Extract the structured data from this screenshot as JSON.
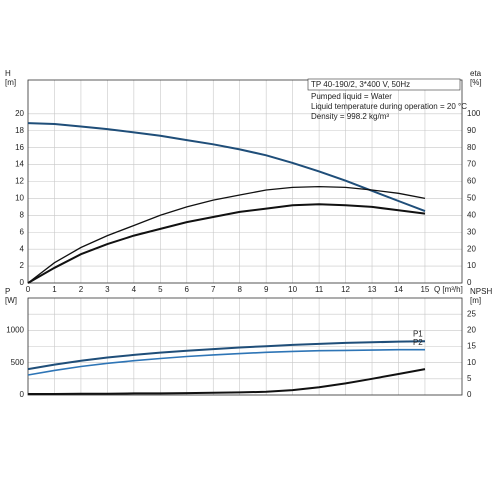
{
  "chart_data": [
    {
      "type": "line",
      "title": "TP 40-190/2, 3*400 V, 50Hz",
      "annotations": [
        "Pumped liquid = Water",
        "Liquid temperature during operation = 20 °C",
        "Density = 998.2 kg/m³"
      ],
      "ylabel": [
        "H",
        "[m]"
      ],
      "y2label": [
        "eta",
        "[%]"
      ],
      "xlabel": "Q [m³/h]",
      "x": [
        0,
        1,
        2,
        3,
        4,
        5,
        6,
        7,
        8,
        9,
        10,
        11,
        12,
        13,
        14,
        15
      ],
      "xlim": [
        0,
        16.4
      ],
      "xticks": [
        0,
        1,
        2,
        3,
        4,
        5,
        6,
        7,
        8,
        9,
        10,
        11,
        12,
        13,
        14,
        15
      ],
      "ylim": [
        0,
        24
      ],
      "yticks": [
        0,
        2,
        4,
        6,
        8,
        10,
        12,
        14,
        16,
        18,
        20
      ],
      "y2lim": [
        0,
        120
      ],
      "y2ticks": [
        0,
        10,
        20,
        30,
        40,
        50,
        60,
        70,
        80,
        90,
        100
      ],
      "grid": true,
      "series": [
        {
          "color": "#1f4e79",
          "width": 2,
          "values": [
            18.9,
            18.8,
            18.5,
            18.2,
            17.8,
            17.4,
            16.9,
            16.4,
            15.8,
            15.1,
            14.2,
            13.2,
            12.1,
            10.9,
            9.7,
            8.5
          ]
        },
        {
          "color": "#111111",
          "width": 1.3,
          "axis": "y2",
          "values": [
            0,
            12,
            21,
            28,
            34,
            40,
            45,
            49,
            52,
            55,
            56.5,
            57,
            56.5,
            55,
            53,
            50
          ]
        },
        {
          "color": "#111111",
          "width": 2,
          "axis": "y2",
          "values": [
            0,
            9,
            17,
            23,
            28,
            32,
            36,
            39,
            42,
            44,
            46,
            46.5,
            46,
            45,
            43,
            41
          ]
        }
      ]
    },
    {
      "type": "line",
      "ylabel": [
        "P",
        "[W]"
      ],
      "y2label": [
        "NPSH",
        "[m]"
      ],
      "x": [
        0,
        1,
        2,
        3,
        4,
        5,
        6,
        7,
        8,
        9,
        10,
        11,
        12,
        13,
        14,
        15
      ],
      "xlim": [
        0,
        16.4
      ],
      "xticks": [
        0,
        1,
        2,
        3,
        4,
        5,
        6,
        7,
        8,
        9,
        10,
        11,
        12,
        13,
        14,
        15
      ],
      "ylim": [
        0,
        1500
      ],
      "yticks": [
        0,
        500,
        1000
      ],
      "y2lim": [
        0,
        30
      ],
      "y2ticks": [
        0,
        5,
        10,
        15,
        20,
        25
      ],
      "grid": true,
      "series": [
        {
          "name": "P1",
          "color": "#1f4e79",
          "width": 2,
          "values": [
            400,
            470,
            530,
            580,
            620,
            655,
            685,
            710,
            735,
            755,
            775,
            790,
            805,
            815,
            825,
            830
          ]
        },
        {
          "name": "P2",
          "color": "#2e75b6",
          "width": 1.6,
          "values": [
            310,
            380,
            440,
            490,
            530,
            565,
            595,
            620,
            640,
            660,
            675,
            685,
            690,
            695,
            700,
            700
          ]
        },
        {
          "color": "#111111",
          "width": 2,
          "axis": "y2",
          "values": [
            0.3,
            0.3,
            0.4,
            0.4,
            0.5,
            0.5,
            0.6,
            0.7,
            0.8,
            1,
            1.5,
            2.4,
            3.6,
            5,
            6.5,
            8
          ]
        }
      ]
    }
  ]
}
